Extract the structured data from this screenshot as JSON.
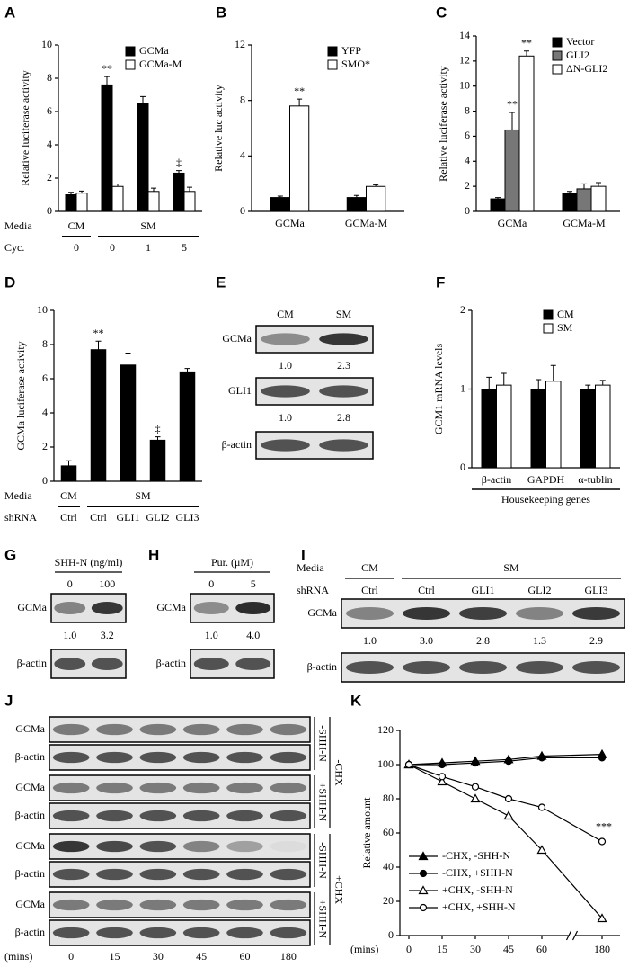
{
  "panel_labels": [
    "A",
    "B",
    "C",
    "D",
    "E",
    "F",
    "G",
    "H",
    "I",
    "J",
    "K"
  ],
  "chart_data": [
    {
      "type": "bar",
      "ylabel": "Relative luciferase activity",
      "categories": [
        "0",
        "0",
        "1",
        "5"
      ],
      "category_label": "Cyc.",
      "group_label": "Media",
      "groups": [
        "CM",
        "SM"
      ],
      "series": [
        {
          "name": "GCMa",
          "color": "#000000",
          "values": [
            1.0,
            7.6,
            6.5,
            2.3
          ],
          "errors": [
            0.15,
            0.5,
            0.4,
            0.15
          ]
        },
        {
          "name": "GCMa-M",
          "color": "#ffffff",
          "values": [
            1.1,
            1.5,
            1.2,
            1.2
          ],
          "errors": [
            0.12,
            0.15,
            0.2,
            0.25
          ]
        }
      ],
      "ylim": [
        0,
        10
      ],
      "yticks": [
        0,
        2,
        4,
        6,
        8,
        10
      ],
      "annotations": [
        "**",
        "‡"
      ]
    },
    {
      "type": "bar",
      "ylabel": "Relative luc activity",
      "categories": [
        "GCMa",
        "GCMa-M"
      ],
      "series": [
        {
          "name": "YFP",
          "color": "#000000",
          "values": [
            1.0,
            1.0
          ],
          "errors": [
            0.1,
            0.15
          ]
        },
        {
          "name": "SMO*",
          "color": "#ffffff",
          "values": [
            7.6,
            1.8
          ],
          "errors": [
            0.5,
            0.12
          ]
        }
      ],
      "ylim": [
        0,
        12
      ],
      "yticks": [
        0,
        4,
        8,
        12
      ],
      "annotations": [
        "**"
      ]
    },
    {
      "type": "bar",
      "ylabel": "Relative luciferase activity",
      "categories": [
        "GCMa",
        "GCMa-M"
      ],
      "series": [
        {
          "name": "Vector",
          "color": "#000000",
          "values": [
            1.0,
            1.4
          ],
          "errors": [
            0.1,
            0.2
          ]
        },
        {
          "name": "GLI2",
          "color": "#777777",
          "values": [
            6.5,
            1.8
          ],
          "errors": [
            1.4,
            0.4
          ]
        },
        {
          "name": "ΔN-GLI2",
          "color": "#ffffff",
          "values": [
            12.4,
            2.0
          ],
          "errors": [
            0.4,
            0.3
          ]
        }
      ],
      "ylim": [
        0,
        14
      ],
      "yticks": [
        0,
        2,
        4,
        6,
        8,
        10,
        12,
        14
      ],
      "annotations": [
        "**",
        "**"
      ]
    },
    {
      "type": "bar",
      "ylabel": "GCMa luciferase activity",
      "categories": [
        "Ctrl",
        "Ctrl",
        "GLI1",
        "GLI2",
        "GLI3"
      ],
      "category_label": "shRNA",
      "group_label": "Media",
      "groups": [
        "CM",
        "SM"
      ],
      "color": "#000000",
      "values": [
        0.9,
        7.7,
        6.8,
        2.4,
        6.4
      ],
      "errors": [
        0.3,
        0.5,
        0.7,
        0.2,
        0.2
      ],
      "ylim": [
        0,
        10
      ],
      "yticks": [
        0,
        2,
        4,
        6,
        8,
        10
      ],
      "annotations": [
        "**",
        "‡"
      ]
    },
    {
      "type": "bar",
      "ylabel": "GCM1 mRNA levels",
      "categories": [
        "β-actin",
        "GAPDH",
        "α-tublin"
      ],
      "xlabel": "Housekeeping genes",
      "series": [
        {
          "name": "CM",
          "color": "#000000",
          "values": [
            1.0,
            1.0,
            1.0
          ],
          "errors": [
            0.15,
            0.12,
            0.05
          ]
        },
        {
          "name": "SM",
          "color": "#ffffff",
          "values": [
            1.05,
            1.1,
            1.05
          ],
          "errors": [
            0.15,
            0.2,
            0.06
          ]
        }
      ],
      "ylim": [
        0,
        2
      ],
      "yticks": [
        0,
        1,
        2
      ]
    },
    {
      "type": "line",
      "ylabel": "Relative amount",
      "xlabel": "(mins)",
      "categories": [
        "0",
        "15",
        "30",
        "45",
        "60",
        "180"
      ],
      "ylim": [
        0,
        120
      ],
      "yticks": [
        0,
        20,
        40,
        60,
        80,
        100,
        120
      ],
      "series": [
        {
          "name": "-CHX, -SHH-N",
          "marker": "triangle",
          "filled": true,
          "color": "#000000",
          "values": [
            100,
            101,
            102,
            103,
            105,
            106
          ]
        },
        {
          "name": "-CHX, +SHH-N",
          "marker": "circle",
          "filled": true,
          "color": "#000000",
          "values": [
            100,
            100,
            101,
            102,
            104,
            104
          ]
        },
        {
          "name": "+CHX, -SHH-N",
          "marker": "triangle",
          "filled": false,
          "color": "#000000",
          "values": [
            100,
            90,
            80,
            70,
            50,
            10
          ]
        },
        {
          "name": "+CHX, +SHH-N",
          "marker": "circle",
          "filled": false,
          "color": "#000000",
          "values": [
            100,
            93,
            87,
            80,
            75,
            55
          ]
        }
      ],
      "annotations": [
        "***"
      ]
    }
  ],
  "blots": {
    "E": {
      "columns": [
        "CM",
        "SM"
      ],
      "rows": [
        {
          "label": "GCMa",
          "quant": [
            "1.0",
            "2.3"
          ]
        },
        {
          "label": "GLI1",
          "quant": [
            "1.0",
            "2.8"
          ]
        },
        {
          "label": "β-actin"
        }
      ]
    },
    "G": {
      "header": "SHH-N (ng/ml)",
      "columns": [
        "0",
        "100"
      ],
      "rows": [
        {
          "label": "GCMa",
          "quant": [
            "1.0",
            "3.2"
          ]
        },
        {
          "label": "β-actin"
        }
      ]
    },
    "H": {
      "header": "Pur. (μM)",
      "columns": [
        "0",
        "5"
      ],
      "rows": [
        {
          "label": "GCMa",
          "quant": [
            "1.0",
            "4.0"
          ]
        },
        {
          "label": "β-actin"
        }
      ]
    },
    "I": {
      "group_label": "Media",
      "groups": [
        "CM",
        "SM"
      ],
      "column_label": "shRNA",
      "columns": [
        "Ctrl",
        "Ctrl",
        "GLI1",
        "GLI2",
        "GLI3"
      ],
      "rows": [
        {
          "label": "GCMa",
          "quant": [
            "1.0",
            "3.0",
            "2.8",
            "1.3",
            "2.9"
          ]
        },
        {
          "label": "β-actin"
        }
      ]
    },
    "J": {
      "rows": [
        {
          "label": "GCMa"
        },
        {
          "label": "β-actin"
        },
        {
          "label": "GCMa"
        },
        {
          "label": "β-actin"
        },
        {
          "label": "GCMa"
        },
        {
          "label": "β-actin"
        },
        {
          "label": "GCMa"
        },
        {
          "label": "β-actin"
        }
      ],
      "shh_labels": [
        "-SHH-N",
        "+SHH-N",
        "-SHH-N",
        "+SHH-N"
      ],
      "chx_labels": [
        "-CHX",
        "+CHX"
      ],
      "time_label": "(mins)",
      "times": [
        "0",
        "15",
        "30",
        "45",
        "60",
        "180"
      ]
    }
  }
}
